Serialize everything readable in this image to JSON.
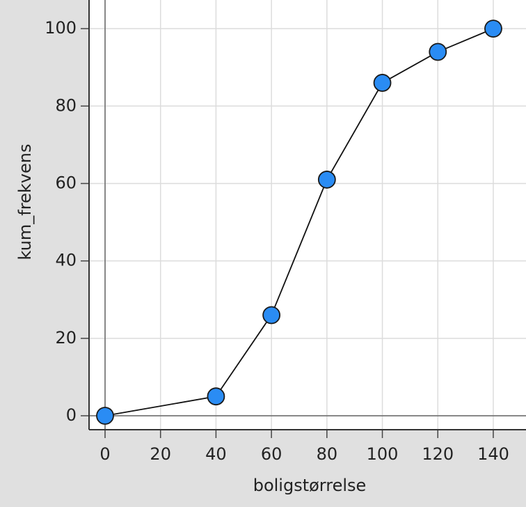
{
  "chart_data": {
    "type": "line",
    "x_label": "boligstørrelse",
    "y_label": "kum_frekvens",
    "x": [
      0,
      40,
      60,
      80,
      100,
      120,
      140
    ],
    "series": [
      {
        "name": "kum_frekvens",
        "color": "#2a8cf4",
        "values": [
          0,
          5,
          26,
          61,
          86,
          94,
          100
        ]
      }
    ],
    "xlim": [
      -5.77,
      151.8
    ],
    "ylim": [
      -3.6,
      107.4
    ],
    "xticks": [
      0,
      20,
      40,
      60,
      80,
      100,
      120,
      140
    ],
    "yticks": [
      0,
      20,
      40,
      60,
      80,
      100
    ],
    "grid": true
  }
}
